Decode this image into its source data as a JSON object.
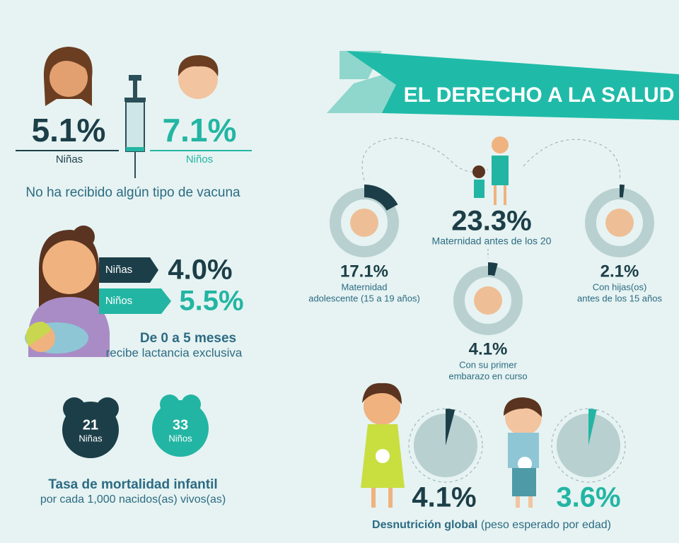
{
  "title": "EL DERECHO A LA SALUD",
  "vaccine": {
    "girls": {
      "value": "5.1%",
      "label": "Niñas"
    },
    "boys": {
      "value": "7.1%",
      "label": "Niños"
    },
    "caption": "No ha recibido algún tipo de vacuna"
  },
  "breastfeeding": {
    "girls": {
      "label": "Niñas",
      "value": "4.0%"
    },
    "boys": {
      "label": "Niños",
      "value": "5.5%"
    },
    "caption_bold": "De 0 a 5 meses",
    "caption": "recibe lactancia exclusiva"
  },
  "mortality": {
    "girls": {
      "value": "21",
      "label": "Niñas"
    },
    "boys": {
      "value": "33",
      "label": "Niños"
    },
    "caption_bold": "Tasa de mortalidad infantil",
    "caption": "por cada 1,000 nacidos(as) vivos(as)"
  },
  "maternity": {
    "total": {
      "value": "23.3%",
      "label": "Maternidad antes de los 20"
    },
    "items": [
      {
        "value": 17.1,
        "label": "17.1%",
        "lines": [
          "Maternidad",
          "adolescente (15 a 19 años)"
        ]
      },
      {
        "value": 4.1,
        "label": "4.1%",
        "lines": [
          "Con su primer",
          "embarazo en curso"
        ]
      },
      {
        "value": 2.1,
        "label": "2.1%",
        "lines": [
          "Con hijas(os)",
          "antes de los 15 años"
        ]
      }
    ]
  },
  "malnutrition": {
    "girls": {
      "value": 4.1,
      "label": "4.1%"
    },
    "boys": {
      "value": 3.6,
      "label": "3.6%"
    },
    "caption_bold": "Desnutrición global",
    "caption": "(peso esperado por edad)"
  }
}
